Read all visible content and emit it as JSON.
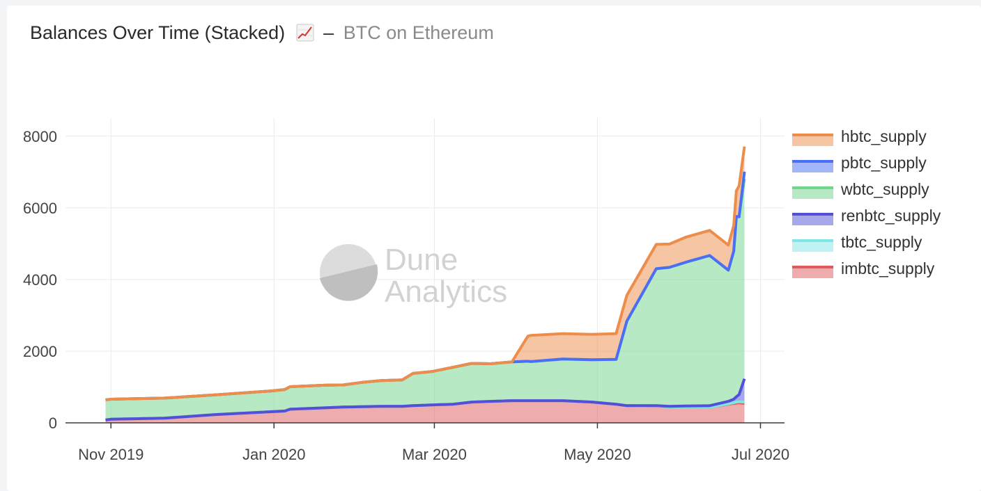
{
  "header": {
    "title": "Balances Over Time (Stacked)",
    "title_icon": "chart-increasing-icon",
    "separator": "–",
    "subtitle": "BTC on Ethereum"
  },
  "watermark": {
    "line1": "Dune",
    "line2": "Analytics"
  },
  "chart_data": {
    "type": "area",
    "stacked": true,
    "title": "Balances Over Time (Stacked)",
    "x_type": "date",
    "xlim": [
      "2019-10-15",
      "2020-07-10"
    ],
    "ylim": [
      0,
      8500
    ],
    "x_ticks": [
      {
        "date": "2019-11-01",
        "label": "Nov 2019"
      },
      {
        "date": "2020-01-01",
        "label": "Jan 2020"
      },
      {
        "date": "2020-03-01",
        "label": "Mar 2020"
      },
      {
        "date": "2020-05-01",
        "label": "May 2020"
      },
      {
        "date": "2020-07-01",
        "label": "Jul 2020"
      }
    ],
    "y_ticks": [
      0,
      2000,
      4000,
      6000,
      8000
    ],
    "grid": true,
    "legend_position": "right",
    "x": [
      "2019-10-30",
      "2019-11-01",
      "2019-11-21",
      "2019-12-10",
      "2019-12-31",
      "2020-01-05",
      "2020-01-07",
      "2020-01-20",
      "2020-01-27",
      "2020-02-03",
      "2020-02-10",
      "2020-02-18",
      "2020-02-22",
      "2020-02-29",
      "2020-03-08",
      "2020-03-15",
      "2020-03-22",
      "2020-03-30",
      "2020-04-05",
      "2020-04-06",
      "2020-04-18",
      "2020-04-29",
      "2020-05-08",
      "2020-05-12",
      "2020-05-23",
      "2020-05-28",
      "2020-06-03",
      "2020-06-12",
      "2020-06-19",
      "2020-06-21",
      "2020-06-22",
      "2020-06-23",
      "2020-06-25"
    ],
    "series": [
      {
        "name": "imbtc_supply",
        "color": "#e05a5a",
        "values": [
          80,
          100,
          130,
          230,
          310,
          330,
          380,
          420,
          440,
          450,
          460,
          460,
          480,
          500,
          520,
          580,
          600,
          620,
          620,
          620,
          620,
          580,
          520,
          480,
          470,
          440,
          430,
          430,
          520,
          540,
          550,
          560,
          540
        ]
      },
      {
        "name": "tbtc_supply",
        "color": "#7fe6e6",
        "values": [
          0,
          0,
          0,
          0,
          0,
          0,
          0,
          0,
          0,
          0,
          0,
          0,
          0,
          0,
          0,
          0,
          0,
          0,
          0,
          0,
          0,
          0,
          0,
          0,
          0,
          0,
          0,
          0,
          10,
          20,
          30,
          30,
          40
        ]
      },
      {
        "name": "renbtc_supply",
        "color": "#5050d8",
        "values": [
          0,
          0,
          0,
          0,
          0,
          0,
          0,
          0,
          0,
          0,
          0,
          0,
          0,
          0,
          0,
          0,
          0,
          0,
          0,
          0,
          0,
          0,
          0,
          0,
          10,
          20,
          40,
          50,
          70,
          100,
          150,
          200,
          650
        ]
      },
      {
        "name": "wbtc_supply",
        "color": "#70d68a",
        "values": [
          560,
          560,
          560,
          550,
          580,
          600,
          630,
          630,
          620,
          680,
          720,
          740,
          900,
          930,
          1030,
          1080,
          1050,
          1080,
          1100,
          1090,
          1160,
          1180,
          1250,
          2360,
          3820,
          3880,
          4010,
          4190,
          3660,
          4130,
          5030,
          4960,
          5580
        ]
      },
      {
        "name": "pbtc_supply",
        "color": "#4a6ef5",
        "values": [
          0,
          0,
          0,
          0,
          0,
          0,
          0,
          0,
          0,
          0,
          0,
          0,
          0,
          0,
          0,
          0,
          0,
          0,
          0,
          0,
          0,
          0,
          0,
          0,
          0,
          0,
          0,
          0,
          0,
          0,
          0,
          0,
          200
        ]
      },
      {
        "name": "hbtc_supply",
        "color": "#ee8c4a",
        "values": [
          0,
          0,
          0,
          0,
          0,
          0,
          0,
          0,
          0,
          0,
          0,
          0,
          0,
          0,
          0,
          0,
          0,
          0,
          700,
          730,
          710,
          710,
          720,
          720,
          680,
          650,
          700,
          700,
          700,
          720,
          720,
          860,
          700
        ]
      }
    ],
    "legend_order": [
      "hbtc_supply",
      "pbtc_supply",
      "wbtc_supply",
      "renbtc_supply",
      "tbtc_supply",
      "imbtc_supply"
    ]
  }
}
